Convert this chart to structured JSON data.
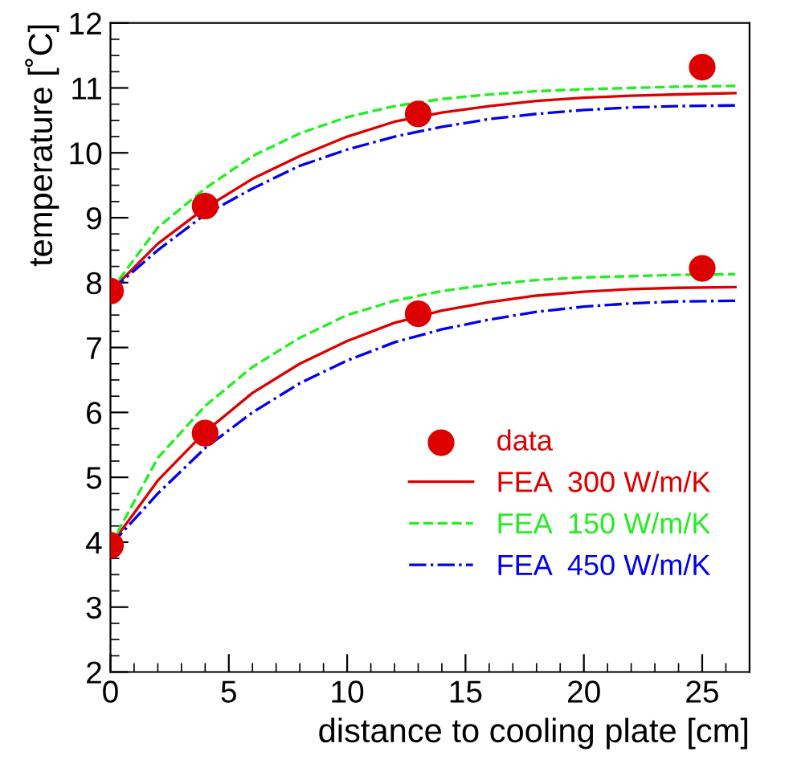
{
  "chart_data": {
    "type": "line",
    "xlabel": "distance to cooling plate [cm]",
    "ylabel": "temperature [˚C]",
    "xlim": [
      0,
      27
    ],
    "ylim": [
      2,
      12
    ],
    "xticks": [
      0,
      5,
      10,
      15,
      20,
      25
    ],
    "yticks": [
      2,
      3,
      4,
      5,
      6,
      7,
      8,
      9,
      10,
      11,
      12
    ],
    "grid": false,
    "legend": "bottom right",
    "series": [
      {
        "name": "data",
        "type": "scatter",
        "marker": "circle",
        "color": "#dd0000",
        "x": [
          0,
          4,
          13,
          25,
          0,
          4,
          13,
          25
        ],
        "values": [
          7.87,
          9.18,
          10.6,
          11.32,
          3.95,
          5.68,
          7.52,
          8.22
        ]
      },
      {
        "name": "FEA  300 W/m/K",
        "color": "#dd0000",
        "line_style": "solid",
        "x": [
          0,
          2,
          4,
          6,
          8,
          10,
          12,
          14,
          16,
          18,
          20,
          22,
          24,
          26.4
        ],
        "values": [
          7.87,
          8.6,
          9.15,
          9.6,
          9.95,
          10.25,
          10.48,
          10.62,
          10.72,
          10.8,
          10.85,
          10.88,
          10.9,
          10.92
        ]
      },
      {
        "name": "FEA  150 W/m/K",
        "color": "#22ee22",
        "line_style": "dashed",
        "x": [
          0,
          2,
          4,
          6,
          8,
          10,
          12,
          14,
          16,
          18,
          20,
          22,
          24,
          26.4
        ],
        "values": [
          7.87,
          8.85,
          9.45,
          9.95,
          10.3,
          10.55,
          10.72,
          10.83,
          10.9,
          10.95,
          10.98,
          11.0,
          11.02,
          11.03
        ]
      },
      {
        "name": "FEA  450 W/m/K",
        "color": "#0000ee",
        "line_style": "dashdot",
        "x": [
          0,
          2,
          4,
          6,
          8,
          10,
          12,
          14,
          16,
          18,
          20,
          22,
          24,
          26.4
        ],
        "values": [
          7.87,
          8.5,
          9.05,
          9.45,
          9.8,
          10.05,
          10.25,
          10.4,
          10.52,
          10.6,
          10.66,
          10.7,
          10.72,
          10.73
        ]
      },
      {
        "color": "#dd0000",
        "line_style": "solid",
        "x": [
          0,
          2,
          4,
          6,
          8,
          10,
          12,
          14,
          16,
          18,
          20,
          22,
          24,
          26.4
        ],
        "values": [
          3.95,
          4.95,
          5.7,
          6.3,
          6.75,
          7.1,
          7.38,
          7.57,
          7.7,
          7.8,
          7.86,
          7.9,
          7.92,
          7.93
        ]
      },
      {
        "color": "#22ee22",
        "line_style": "dashed",
        "x": [
          0,
          2,
          4,
          6,
          8,
          10,
          12,
          14,
          16,
          18,
          20,
          22,
          24,
          26.4
        ],
        "values": [
          3.95,
          5.3,
          6.1,
          6.7,
          7.15,
          7.5,
          7.72,
          7.87,
          7.97,
          8.04,
          8.08,
          8.1,
          8.12,
          8.13
        ]
      },
      {
        "color": "#0000ee",
        "line_style": "dashdot",
        "x": [
          0,
          2,
          4,
          6,
          8,
          10,
          12,
          14,
          16,
          18,
          20,
          22,
          24,
          26.4
        ],
        "values": [
          3.95,
          4.75,
          5.45,
          6.0,
          6.45,
          6.8,
          7.08,
          7.28,
          7.43,
          7.55,
          7.63,
          7.68,
          7.71,
          7.72
        ]
      }
    ]
  }
}
